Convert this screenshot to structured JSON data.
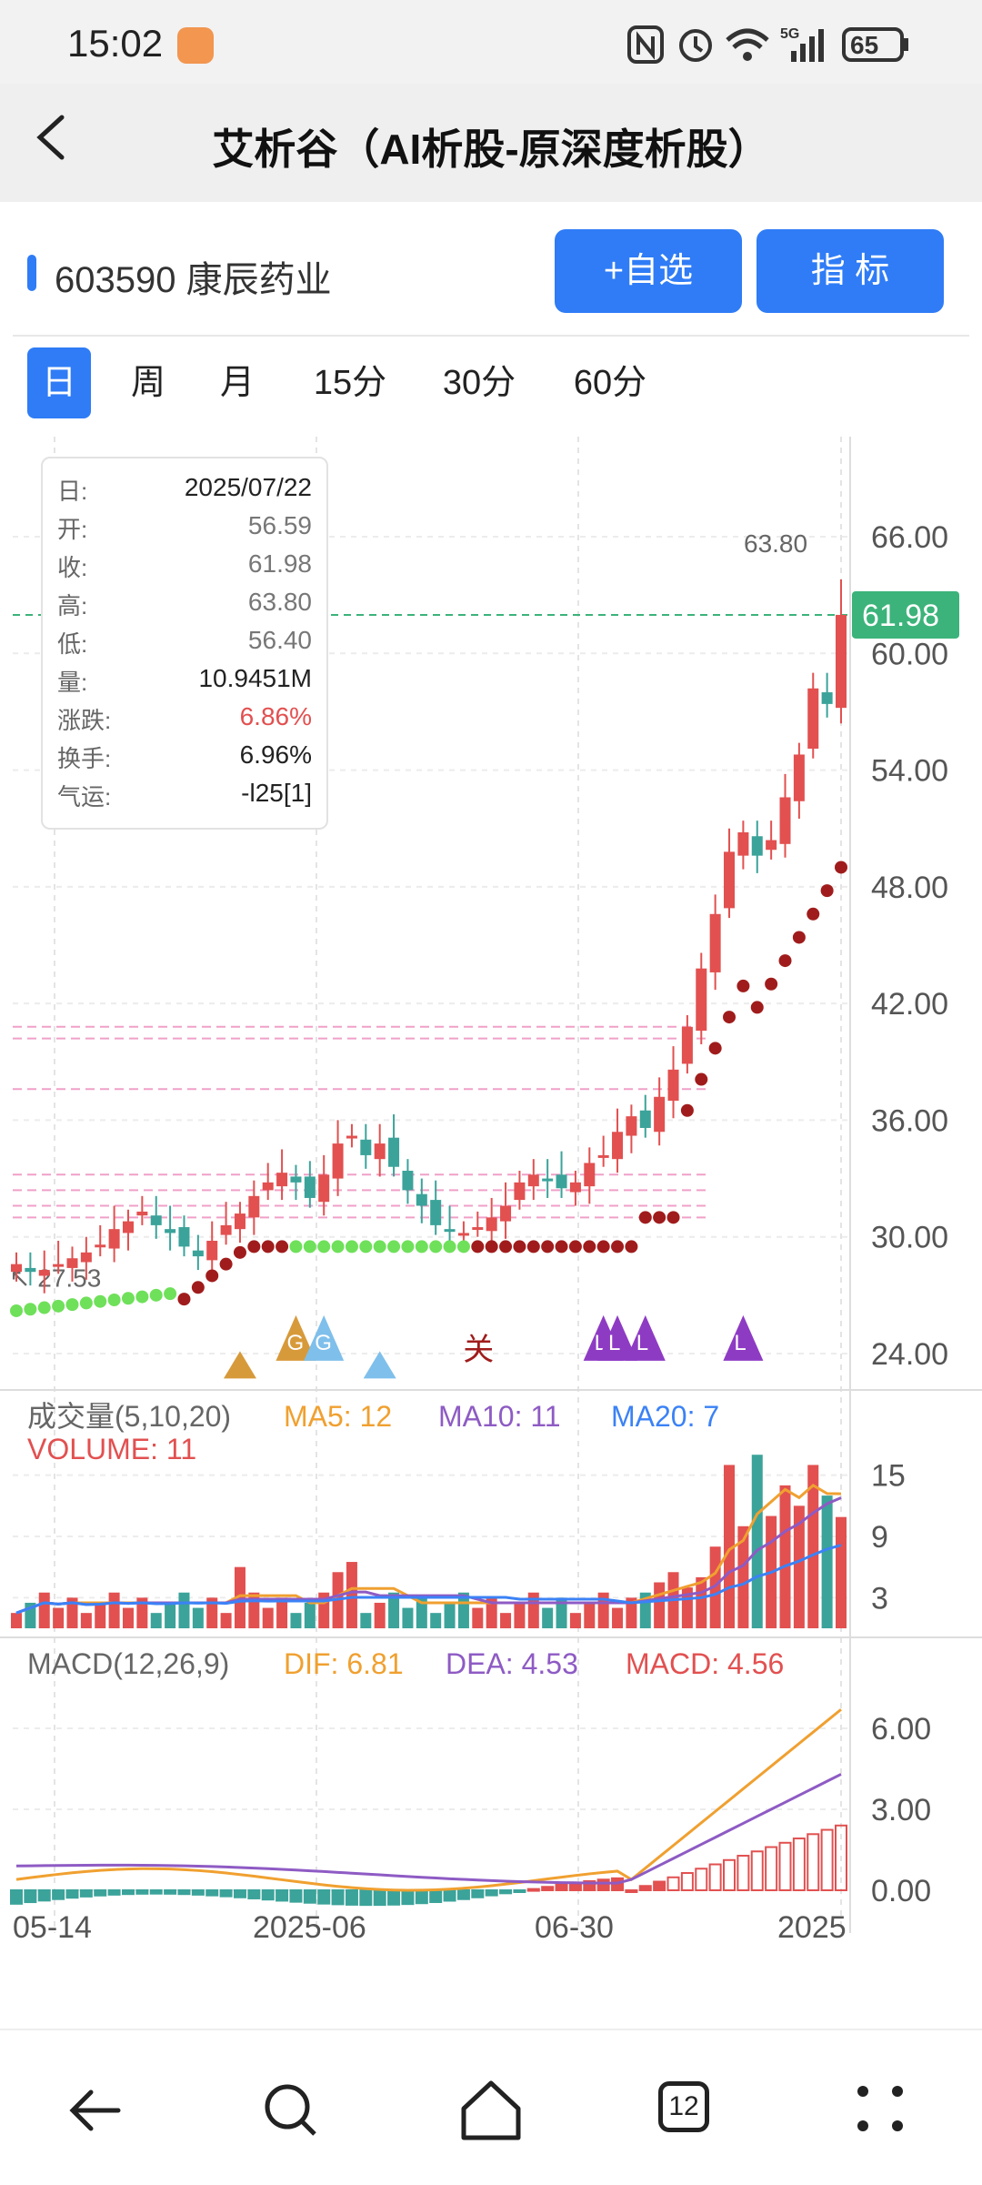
{
  "status_bar": {
    "time": "15:02",
    "battery": "65",
    "network": "5G"
  },
  "title_bar": {
    "title": "艾析谷（AI析股-原深度析股）"
  },
  "stock": {
    "code_name": "603590 康辰药业",
    "add_watch": "+自选",
    "indicator": "指  标"
  },
  "periods": [
    "日",
    "周",
    "月",
    "15分",
    "30分",
    "60分"
  ],
  "active_period": "日",
  "info": {
    "rows": [
      {
        "label": "日:",
        "value": "2025/07/22",
        "color": "#222"
      },
      {
        "label": "开:",
        "value": "56.59",
        "color": "#777"
      },
      {
        "label": "收:",
        "value": "61.98",
        "color": "#777"
      },
      {
        "label": "高:",
        "value": "63.80",
        "color": "#777"
      },
      {
        "label": "低:",
        "value": "56.40",
        "color": "#777"
      },
      {
        "label": "量:",
        "value": "10.9451M",
        "color": "#222"
      },
      {
        "label": "涨跌:",
        "value": "6.86%",
        "color": "#e25050"
      },
      {
        "label": "换手:",
        "value": "6.96%",
        "color": "#222"
      },
      {
        "label": "气运:",
        "value": "-l25[1]",
        "color": "#222"
      }
    ]
  },
  "price_chart": {
    "y_ticks": [
      "66.00",
      "60.00",
      "54.00",
      "48.00",
      "42.00",
      "36.00",
      "30.00",
      "24.00"
    ],
    "high_label": "63.80",
    "low_label": "27.53",
    "current_price": "61.98",
    "marker_text_guan": "关",
    "marker_text_g": "G",
    "marker_text_l": "L"
  },
  "volume_chart": {
    "legend_title": "成交量(5,10,20)",
    "ma5": "MA5: 12",
    "ma10": "MA10: 11",
    "ma20": "MA20: 7",
    "volume": "VOLUME: 11",
    "y_ticks": [
      "15",
      "9",
      "3"
    ]
  },
  "macd_chart": {
    "legend_title": "MACD(12,26,9)",
    "dif": "DIF: 6.81",
    "dea": "DEA: 4.53",
    "macd": "MACD: 4.56",
    "y_ticks": [
      "6.00",
      "3.00",
      "0.00"
    ]
  },
  "x_axis": [
    "05-14",
    "2025-06",
    "06-30",
    "2025"
  ],
  "colors": {
    "up": "#e25050",
    "down": "#3ba39a",
    "accent": "#2f7cf6",
    "ma5": "#f0a030",
    "ma10": "#8e5bc4",
    "ma20": "#3b82f6",
    "price_tag": "#3cb37a"
  },
  "nav": {
    "tabs_count": "12"
  },
  "chart_data": {
    "type": "candlestick",
    "dates_visible": [
      "05-14",
      "2025-06",
      "06-30",
      "2025"
    ],
    "last": {
      "date": "2025/07/22",
      "open": 56.59,
      "close": 61.98,
      "high": 63.8,
      "low": 56.4,
      "volume_m": 10.9451,
      "change_pct": 6.86,
      "turnover_pct": 6.96
    },
    "closes": [
      28.6,
      28.2,
      28.3,
      28.6,
      28.9,
      29.2,
      29.6,
      30.4,
      30.8,
      31.3,
      30.6,
      30.2,
      29.5,
      29.0,
      29.8,
      30.6,
      31.2,
      32.1,
      32.8,
      33.3,
      32.8,
      32.0,
      33.2,
      34.8,
      35.2,
      34.2,
      34.8,
      33.6,
      32.4,
      31.6,
      30.6,
      30.4,
      30.2,
      30.5,
      31.0,
      31.6,
      32.8,
      33.2,
      32.9,
      32.5,
      32.8,
      33.8,
      34.2,
      35.4,
      36.2,
      35.6,
      37.2,
      38.6,
      40.8,
      43.8,
      46.6,
      49.8,
      50.8,
      49.6,
      50.4,
      52.6,
      54.8,
      58.2,
      57.4,
      61.98
    ],
    "volume_ticks": [
      15,
      9,
      3
    ],
    "macd_ticks": [
      6.0,
      3.0,
      0.0
    ],
    "dif": 6.81,
    "dea": 4.53,
    "macd": 4.56,
    "ma5": 12,
    "ma10": 11,
    "ma20": 7,
    "volume": 11
  }
}
